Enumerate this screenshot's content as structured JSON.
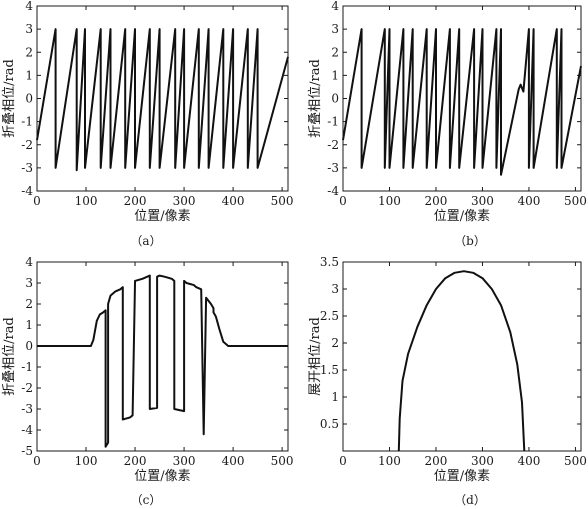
{
  "chart_data": [
    {
      "type": "line",
      "caption": "（a）",
      "xlabel": "位置/像素",
      "ylabel": "折叠相位/rad",
      "xlim": [
        0,
        512
      ],
      "ylim": [
        -4,
        4
      ],
      "xticks": [
        0,
        100,
        200,
        300,
        400,
        500
      ],
      "yticks": [
        -4,
        -3,
        -2,
        -1,
        0,
        1,
        2,
        3,
        4
      ],
      "grid": false,
      "series": [
        {
          "x": [
            0,
            38,
            38,
            81,
            81,
            98,
            98,
            130,
            130,
            150,
            150,
            180,
            180,
            200,
            200,
            230,
            230,
            250,
            250,
            282,
            282,
            300,
            300,
            330,
            330,
            350,
            350,
            380,
            380,
            400,
            400,
            430,
            430,
            450,
            450,
            512
          ],
          "y": [
            -1.8,
            3.0,
            -3.0,
            3.0,
            -3.1,
            3.0,
            -3.0,
            3.0,
            -3.0,
            3.0,
            -3.0,
            3.0,
            -3.0,
            3.0,
            -3.0,
            3.0,
            -3.0,
            3.0,
            -3.0,
            3.0,
            -3.0,
            3.0,
            -3.0,
            3.0,
            -3.0,
            3.0,
            -3.0,
            3.0,
            -3.0,
            3.0,
            -3.0,
            3.0,
            -3.0,
            3.0,
            -3.0,
            1.8
          ]
        }
      ]
    },
    {
      "type": "line",
      "caption": "（b）",
      "xlabel": "位置/像素",
      "ylabel": "折叠相位/rad",
      "xlim": [
        0,
        512
      ],
      "ylim": [
        -4,
        4
      ],
      "xticks": [
        0,
        100,
        200,
        300,
        400,
        500
      ],
      "yticks": [
        -4,
        -3,
        -2,
        -1,
        0,
        1,
        2,
        3,
        4
      ],
      "grid": false,
      "series": [
        {
          "x": [
            0,
            40,
            40,
            90,
            90,
            100,
            100,
            130,
            130,
            150,
            150,
            180,
            180,
            200,
            200,
            230,
            230,
            250,
            250,
            282,
            282,
            300,
            300,
            330,
            330,
            340,
            340,
            378,
            382,
            385,
            388,
            400,
            400,
            410,
            410,
            460,
            460,
            470,
            470,
            512
          ],
          "y": [
            -1.8,
            3.0,
            -3.0,
            3.0,
            -3.0,
            3.0,
            -3.0,
            3.0,
            -3.0,
            3.0,
            -3.0,
            3.0,
            -3.0,
            3.0,
            -3.0,
            3.0,
            -3.0,
            3.0,
            -3.0,
            3.0,
            -3.0,
            3.0,
            -3.0,
            3.0,
            -3.0,
            3.0,
            -3.3,
            0.4,
            0.6,
            0.45,
            0.3,
            3.0,
            -3.0,
            3.0,
            -3.0,
            3.0,
            -3.0,
            3.0,
            -3.0,
            1.4
          ]
        }
      ]
    },
    {
      "type": "line",
      "caption": "（c）",
      "xlabel": "位置/像素",
      "ylabel": "折叠相位/rad",
      "xlim": [
        0,
        512
      ],
      "ylim": [
        -5,
        4
      ],
      "xticks": [
        0,
        100,
        200,
        300,
        400,
        500
      ],
      "yticks": [
        -5,
        -4,
        -3,
        -2,
        -1,
        0,
        1,
        2,
        3,
        4
      ],
      "grid": false,
      "series": [
        {
          "x": [
            0,
            110,
            115,
            122,
            128,
            135,
            140,
            140,
            145,
            145,
            150,
            160,
            170,
            175,
            175,
            190,
            195,
            200,
            200,
            215,
            225,
            230,
            230,
            245,
            245,
            250,
            260,
            275,
            280,
            280,
            300,
            300,
            305,
            320,
            325,
            335,
            340,
            345,
            355,
            360,
            360,
            365,
            372,
            380,
            390,
            512
          ],
          "y": [
            0,
            0,
            0.3,
            1.2,
            1.5,
            1.6,
            1.7,
            -4.8,
            -4.6,
            2.0,
            2.4,
            2.6,
            2.7,
            2.8,
            -3.5,
            -3.4,
            -3.3,
            3.0,
            3.1,
            3.2,
            3.3,
            3.35,
            -3.0,
            -2.95,
            3.3,
            3.35,
            3.3,
            3.2,
            3.1,
            -3.0,
            -3.1,
            3.1,
            3.0,
            2.9,
            2.8,
            2.7,
            -4.2,
            2.3,
            2.0,
            1.8,
            1.6,
            1.4,
            0.8,
            0.2,
            0,
            0
          ]
        }
      ]
    },
    {
      "type": "line",
      "caption": "（d）",
      "xlabel": "位置/像素",
      "ylabel": "展开相位/rad",
      "xlim": [
        0,
        512
      ],
      "ylim": [
        0,
        3.5
      ],
      "xticks": [
        0,
        100,
        200,
        300,
        400,
        500
      ],
      "yticks": [
        0.5,
        1,
        1.5,
        2,
        2.5,
        3,
        3.5
      ],
      "grid": false,
      "series": [
        {
          "x": [
            120,
            122,
            128,
            140,
            160,
            180,
            200,
            220,
            240,
            260,
            280,
            300,
            320,
            340,
            360,
            375,
            385,
            390
          ],
          "y": [
            0,
            0.6,
            1.3,
            1.8,
            2.3,
            2.7,
            3.0,
            3.2,
            3.3,
            3.33,
            3.3,
            3.2,
            3.0,
            2.7,
            2.2,
            1.6,
            0.9,
            0
          ]
        }
      ]
    }
  ]
}
